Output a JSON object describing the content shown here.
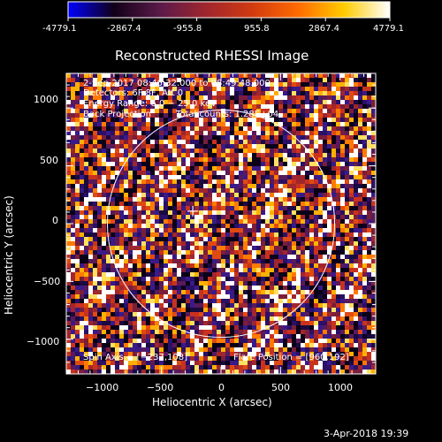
{
  "colorbar": {
    "tick_labels": [
      "-4779.1",
      "-2867.4",
      "-955.8",
      "955.8",
      "2867.4",
      "4779.1"
    ],
    "colors": [
      "#0000ff",
      "#120018",
      "#5a1a4a",
      "#a0262e",
      "#d03a10",
      "#ff6a00",
      "#ffcc00",
      "#ffffff"
    ]
  },
  "plot": {
    "title": "Reconstructed RHESSI Image",
    "xlabel": "Heliocentric X (arcsec)",
    "ylabel": "Heliocentric Y (arcsec)",
    "x_ticks": [
      "−1000",
      "−500",
      "0",
      "500",
      "1000"
    ],
    "y_ticks": [
      "1000",
      "500",
      "0",
      "−500",
      "−1000"
    ],
    "xlim": [
      -1300,
      1300
    ],
    "ylim": [
      -1300,
      1300
    ],
    "solar_limb_radius_arcsec": 955,
    "cross_marker_arcsec": [
      -237,
      108
    ]
  },
  "annotations": {
    "line1": "2-Sep-2017 08:46:32.000 to 08:49:48.000",
    "line2": "Detectors: 6F 8F, Att 0",
    "line3": "Energy Range: 6.0 − 25.0 keV",
    "line4_left": "Back Projection",
    "line4_right": "Total counts: 1.28E+04",
    "spin_axis": "Spin Axis = [−237,108]",
    "flare_position": "Flare Position = [960,192]"
  },
  "timestamp": "3-Apr-2018 19:39"
}
